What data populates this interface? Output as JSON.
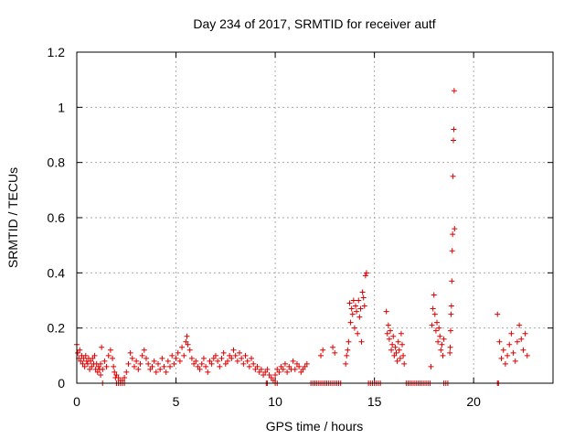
{
  "chart_data": {
    "type": "scatter",
    "title": "Day 234 of 2017, SRMTID for receiver autf",
    "xlabel": "GPS time / hours",
    "ylabel": "SRMTID / TECUs",
    "xlim": [
      0,
      24
    ],
    "ylim": [
      0,
      1.2
    ],
    "xticks": [
      0,
      5,
      10,
      15,
      20
    ],
    "yticks": [
      0,
      0.2,
      0.4,
      0.6,
      0.8,
      1,
      1.2
    ],
    "ytick_labels": [
      "0",
      "0.2",
      "0.4",
      "0.6",
      "0.8",
      "1",
      "1.2"
    ],
    "grid": true,
    "marker": "+",
    "series": [
      {
        "name": "SRMTID",
        "color": "#dd0000",
        "x": [
          0.0,
          0.05,
          0.1,
          0.15,
          0.2,
          0.25,
          0.3,
          0.35,
          0.4,
          0.45,
          0.5,
          0.55,
          0.6,
          0.65,
          0.7,
          0.75,
          0.8,
          0.85,
          0.9,
          0.95,
          1.0,
          1.05,
          1.1,
          1.15,
          1.2,
          1.3,
          1.4,
          1.5,
          1.6,
          1.7,
          1.8,
          1.85,
          1.9,
          1.95,
          2.0,
          2.1,
          2.2,
          2.3,
          2.4,
          2.5,
          2.6,
          2.7,
          2.8,
          2.9,
          3.0,
          3.1,
          3.2,
          3.3,
          3.4,
          3.5,
          3.6,
          3.7,
          3.8,
          3.9,
          4.0,
          4.1,
          4.2,
          4.3,
          4.4,
          4.5,
          4.6,
          4.7,
          4.8,
          4.9,
          5.0,
          5.1,
          5.2,
          5.3,
          5.4,
          5.5,
          5.55,
          5.6,
          5.7,
          5.8,
          5.9,
          6.0,
          6.1,
          6.2,
          6.3,
          6.4,
          6.5,
          6.6,
          6.7,
          6.8,
          6.9,
          7.0,
          7.1,
          7.2,
          7.3,
          7.4,
          7.5,
          7.6,
          7.7,
          7.8,
          7.9,
          8.0,
          8.1,
          8.2,
          8.3,
          8.4,
          8.5,
          8.6,
          8.7,
          8.8,
          8.9,
          9.0,
          9.1,
          9.2,
          9.3,
          9.4,
          9.5,
          9.6,
          9.7,
          9.8,
          9.9,
          10.0,
          10.1,
          10.2,
          10.3,
          10.4,
          10.5,
          10.6,
          10.7,
          10.8,
          10.9,
          11.0,
          11.1,
          11.2,
          11.3,
          11.4,
          11.5,
          11.6,
          12.3,
          12.4,
          12.9,
          13.0,
          13.55,
          13.6,
          13.65,
          13.7,
          13.75,
          13.8,
          13.85,
          13.9,
          13.95,
          14.0,
          14.05,
          14.1,
          14.15,
          14.2,
          14.25,
          14.3,
          14.35,
          14.4,
          14.45,
          14.5,
          14.55,
          14.6,
          15.6,
          15.65,
          15.7,
          15.75,
          15.8,
          15.85,
          15.9,
          15.95,
          16.0,
          16.05,
          16.1,
          16.15,
          16.2,
          16.25,
          16.3,
          16.35,
          16.4,
          16.45,
          16.5,
          17.85,
          17.9,
          17.95,
          18.0,
          18.05,
          18.1,
          18.15,
          18.2,
          18.25,
          18.3,
          18.35,
          18.4,
          18.45,
          18.5,
          18.8,
          18.82,
          18.84,
          18.86,
          18.88,
          18.9,
          18.92,
          18.94,
          18.96,
          18.98,
          19.0,
          19.02,
          19.04,
          21.2,
          21.3,
          21.4,
          21.5,
          21.6,
          21.7,
          21.8,
          21.9,
          22.0,
          22.1,
          22.2,
          22.3,
          22.4,
          22.5,
          22.6,
          22.7,
          1.2,
          1.25,
          1.3,
          2.0,
          2.1,
          2.2,
          2.3,
          2.4,
          9.55,
          9.6,
          10.0,
          10.1,
          11.8,
          11.9,
          12.0,
          12.1,
          12.2,
          12.3,
          12.4,
          12.5,
          12.6,
          12.7,
          12.8,
          12.9,
          13.0,
          13.1,
          13.2,
          13.3,
          14.7,
          14.8,
          14.9,
          15.0,
          15.1,
          15.2,
          15.3,
          16.6,
          16.7,
          16.8,
          16.9,
          17.0,
          17.1,
          17.2,
          17.3,
          17.4,
          17.5,
          17.6,
          17.7,
          17.8,
          18.5,
          18.6,
          18.7,
          21.2,
          21.25
        ],
        "y": [
          0.14,
          0.11,
          0.09,
          0.12,
          0.08,
          0.1,
          0.07,
          0.09,
          0.06,
          0.1,
          0.08,
          0.07,
          0.09,
          0.05,
          0.08,
          0.06,
          0.09,
          0.07,
          0.1,
          0.05,
          0.07,
          0.04,
          0.06,
          0.05,
          0.03,
          0.05,
          0.08,
          0.06,
          0.1,
          0.12,
          0.09,
          0.06,
          0.04,
          0.02,
          0.03,
          0.02,
          0.01,
          0.01,
          0.02,
          0.04,
          0.07,
          0.11,
          0.09,
          0.06,
          0.08,
          0.05,
          0.07,
          0.1,
          0.12,
          0.09,
          0.07,
          0.05,
          0.06,
          0.08,
          0.04,
          0.07,
          0.05,
          0.09,
          0.06,
          0.04,
          0.08,
          0.06,
          0.1,
          0.07,
          0.09,
          0.11,
          0.08,
          0.13,
          0.1,
          0.15,
          0.17,
          0.14,
          0.12,
          0.09,
          0.07,
          0.08,
          0.06,
          0.05,
          0.07,
          0.09,
          0.06,
          0.04,
          0.08,
          0.07,
          0.09,
          0.1,
          0.08,
          0.06,
          0.09,
          0.11,
          0.07,
          0.08,
          0.1,
          0.09,
          0.12,
          0.1,
          0.08,
          0.11,
          0.09,
          0.07,
          0.1,
          0.08,
          0.06,
          0.09,
          0.07,
          0.05,
          0.06,
          0.04,
          0.05,
          0.03,
          0.04,
          0.05,
          0.03,
          0.02,
          0.01,
          0.03,
          0.05,
          0.04,
          0.06,
          0.05,
          0.07,
          0.04,
          0.06,
          0.05,
          0.08,
          0.05,
          0.07,
          0.06,
          0.04,
          0.05,
          0.06,
          0.07,
          0.1,
          0.12,
          0.13,
          0.11,
          0.07,
          0.1,
          0.12,
          0.15,
          0.29,
          0.22,
          0.27,
          0.25,
          0.3,
          0.2,
          0.28,
          0.26,
          0.18,
          0.3,
          0.24,
          0.27,
          0.15,
          0.33,
          0.31,
          0.28,
          0.39,
          0.4,
          0.26,
          0.18,
          0.21,
          0.16,
          0.19,
          0.12,
          0.14,
          0.17,
          0.1,
          0.13,
          0.11,
          0.08,
          0.15,
          0.12,
          0.09,
          0.18,
          0.14,
          0.1,
          0.07,
          0.06,
          0.21,
          0.27,
          0.32,
          0.25,
          0.19,
          0.22,
          0.15,
          0.2,
          0.17,
          0.12,
          0.14,
          0.1,
          0.16,
          0.11,
          0.13,
          0.19,
          0.25,
          0.28,
          0.37,
          0.48,
          0.54,
          0.75,
          0.88,
          0.92,
          1.06,
          0.56,
          0.25,
          0.15,
          0.09,
          0.12,
          0.07,
          0.1,
          0.14,
          0.18,
          0.11,
          0.08,
          0.15,
          0.21,
          0.16,
          0.12,
          0.18,
          0.1,
          0.07,
          0.13,
          0.0,
          0.0,
          0.0,
          0.0,
          0.0,
          0.0,
          0.0,
          0.0,
          0.0,
          0.0,
          0.0,
          0.0,
          0.0,
          0.0,
          0.0,
          0.0,
          0.0,
          0.0,
          0.0,
          0.0,
          0.0,
          0.0,
          0.0,
          0.0,
          0.0,
          0.0,
          0.0,
          0.0,
          0.0,
          0.0,
          0.0,
          0.0,
          0.0,
          0.0,
          0.0,
          0.0,
          0.0,
          0.0,
          0.0,
          0.0,
          0.0,
          0.0,
          0.0,
          0.0,
          0.0,
          0.0,
          0.0,
          0.0,
          0.0,
          0.0,
          0.0
        ]
      }
    ]
  }
}
